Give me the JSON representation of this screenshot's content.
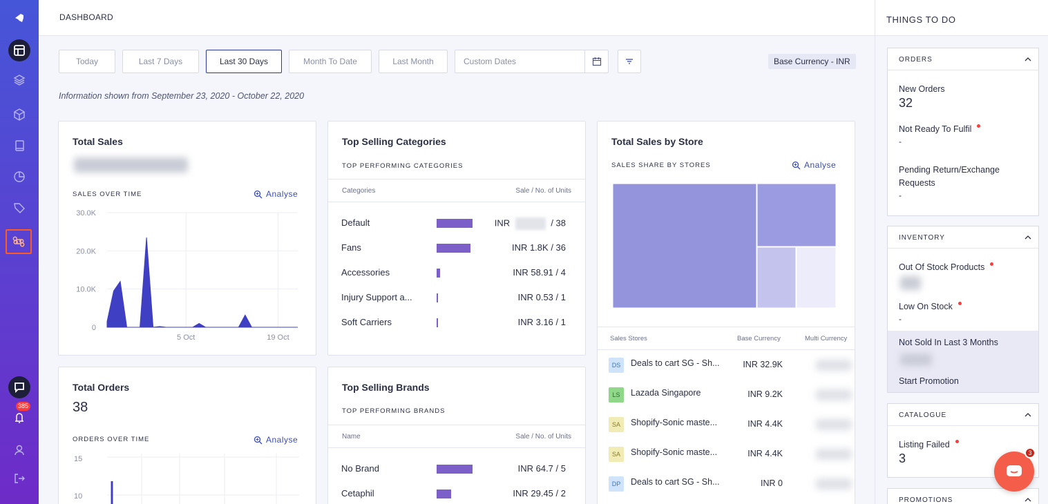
{
  "header": {
    "title": "DASHBOARD"
  },
  "filters": {
    "buttons": [
      "Today",
      "Last 7 Days",
      "Last 30 Days",
      "Month To Date",
      "Last Month"
    ],
    "active": "Last 30 Days",
    "custom_dates_placeholder": "Custom Dates",
    "currency": "Base Currency - INR"
  },
  "info_line": "Information shown from September 23, 2020 - October 22, 2020",
  "total_sales": {
    "title": "Total Sales",
    "subtitle": "SALES OVER TIME",
    "analyse": "Analyse",
    "chart_data": {
      "type": "area",
      "y_ticks": [
        "30.0K",
        "20.0K",
        "10.0K",
        "0"
      ],
      "x_ticks": [
        "5 Oct",
        "19 Oct"
      ],
      "ylim": [
        0,
        30000
      ],
      "x": [
        "Sep 23",
        "Sep 24",
        "Sep 25",
        "Sep 26",
        "Sep 27",
        "Sep 28",
        "Sep 29",
        "Sep 30",
        "Oct 1",
        "Oct 2",
        "Oct 3",
        "Oct 4",
        "Oct 5",
        "Oct 6",
        "Oct 7",
        "Oct 8",
        "Oct 9",
        "Oct 10",
        "Oct 11",
        "Oct 12",
        "Oct 13",
        "Oct 14",
        "Oct 15",
        "Oct 16",
        "Oct 17",
        "Oct 18",
        "Oct 19",
        "Oct 20",
        "Oct 21",
        "Oct 22"
      ],
      "values": [
        1500,
        9500,
        12000,
        0,
        0,
        0,
        23500,
        0,
        200,
        0,
        0,
        0,
        0,
        0,
        1000,
        0,
        0,
        0,
        0,
        0,
        0,
        3200,
        0,
        0,
        0,
        0,
        0,
        0,
        0,
        0
      ]
    }
  },
  "top_categories": {
    "title": "Top Selling Categories",
    "subtitle": "TOP PERFORMING CATEGORIES",
    "col_left": "Categories",
    "col_right": "Sale / No. of Units",
    "rows": [
      {
        "name": "Default",
        "currency": "INR",
        "amount": "",
        "units": "/ 38",
        "bar": 1.0
      },
      {
        "name": "Fans",
        "currency": "INR",
        "amount": "1.8K",
        "units": "/ 36",
        "bar": 0.95
      },
      {
        "name": "Accessories",
        "currency": "INR",
        "amount": "58.91",
        "units": "/ 4",
        "bar": 0.09
      },
      {
        "name": "Injury Support a...",
        "currency": "INR",
        "amount": "0.53",
        "units": "/ 1",
        "bar": 0.04
      },
      {
        "name": "Soft Carriers",
        "currency": "INR",
        "amount": "3.16",
        "units": "/ 1",
        "bar": 0.04
      }
    ]
  },
  "sales_by_store": {
    "title": "Total Sales by Store",
    "subtitle": "SALES SHARE BY STORES",
    "analyse": "Analyse",
    "col_store": "Sales Stores",
    "col_base": "Base Currency",
    "col_multi": "Multi Currency",
    "stores": [
      {
        "badge": "DS",
        "badge_bg": "#cfe3fa",
        "badge_fg": "#3b78c4",
        "name": "Deals to cart SG - Sh...",
        "base": "INR 32.9K"
      },
      {
        "badge": "LS",
        "badge_bg": "#8fd88a",
        "badge_fg": "#2c6e2a",
        "name": "Lazada Singapore",
        "base": "INR 9.2K"
      },
      {
        "badge": "SA",
        "badge_bg": "#f1ecb6",
        "badge_fg": "#8a7d2a",
        "name": "Shopify-Sonic maste...",
        "base": "INR 4.4K"
      },
      {
        "badge": "SA",
        "badge_bg": "#f1ecb6",
        "badge_fg": "#8a7d2a",
        "name": "Shopify-Sonic maste...",
        "base": "INR 4.4K"
      },
      {
        "badge": "DP",
        "badge_bg": "#cfe3fa",
        "badge_fg": "#3b78c4",
        "name": "Deals to cart SG - Sh...",
        "base": "INR 0"
      }
    ],
    "treemap_colors": [
      "#9394dc",
      "#9a9be0",
      "#c3c3ee",
      "#ececfa"
    ]
  },
  "total_orders": {
    "title": "Total Orders",
    "value": "38",
    "subtitle": "ORDERS OVER TIME",
    "analyse": "Analyse",
    "chart_data": {
      "type": "line",
      "y_ticks": [
        "15",
        "10"
      ],
      "ylim": [
        0,
        15
      ]
    }
  },
  "top_brands": {
    "title": "Top Selling Brands",
    "subtitle": "TOP PERFORMING BRANDS",
    "col_left": "Name",
    "col_right": "Sale / No. of Units",
    "rows": [
      {
        "name": "No Brand",
        "currency": "INR",
        "amount": "64.7",
        "units": "/ 5",
        "bar": 1.0
      },
      {
        "name": "Cetaphil",
        "currency": "INR",
        "amount": "29.45",
        "units": "/ 2",
        "bar": 0.4
      }
    ]
  },
  "things_to_do": {
    "title": "THINGS TO DO",
    "orders": {
      "title": "ORDERS",
      "new_orders_label": "New Orders",
      "new_orders_value": "32",
      "not_ready_label": "Not Ready To Fulfil",
      "not_ready_value": "-",
      "pending_label": "Pending Return/Exchange Requests",
      "pending_value": "-"
    },
    "inventory": {
      "title": "INVENTORY",
      "out_of_stock_label": "Out Of Stock Products",
      "low_stock_label": "Low On Stock",
      "low_stock_value": "-",
      "not_sold_label": "Not Sold In Last 3 Months",
      "start_promotion": "Start Promotion"
    },
    "catalogue": {
      "title": "CATALOGUE",
      "listing_failed_label": "Listing Failed",
      "listing_failed_value": "3"
    },
    "promotions": {
      "title": "PROMOTIONS"
    }
  },
  "rail": {
    "notification_count": "385"
  },
  "chat": {
    "badge": "3"
  },
  "colors": {
    "accent": "#3a4cb5",
    "bar": "#7c5fc8",
    "chart": "#3f3fc4",
    "rail_top": "#4656d8",
    "rail_bottom": "#6e2bc7"
  }
}
